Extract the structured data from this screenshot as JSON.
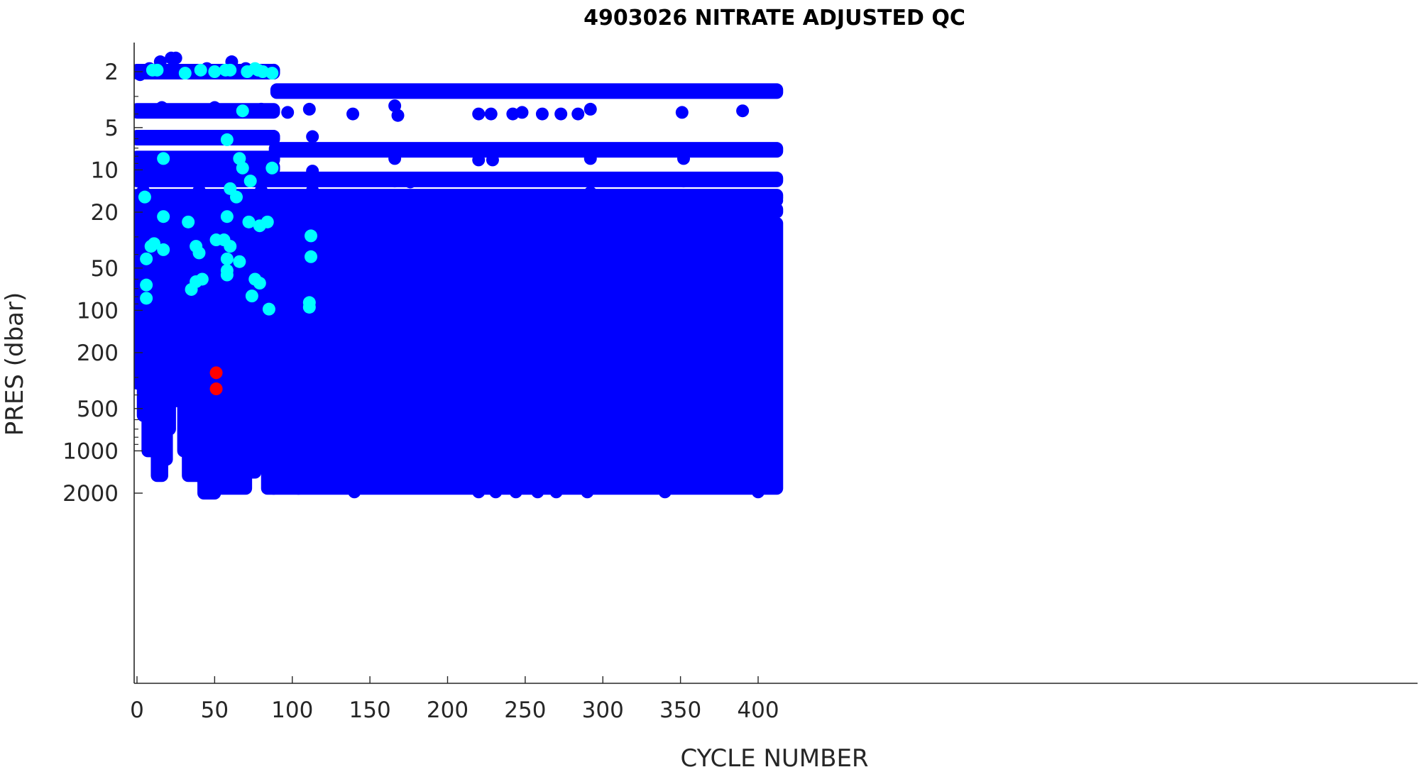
{
  "chart_data": {
    "type": "scatter",
    "title": "4903026  NITRATE ADJUSTED QC",
    "xlabel": "CYCLE NUMBER",
    "ylabel": "PRES (dbar)",
    "xlim": [
      0,
      412
    ],
    "ylim": [
      1.5,
      2100
    ],
    "y_scale": "log",
    "y_direction": "reversed",
    "grid": false,
    "xticks": [
      0,
      50,
      100,
      150,
      200,
      250,
      300,
      350,
      400
    ],
    "yticks": [
      2,
      5,
      10,
      20,
      50,
      100,
      200,
      500,
      1000,
      2000
    ],
    "colors": {
      "qc_good": "#0000ff",
      "qc_probably_good": "#00ffff",
      "qc_bad": "#ff0000"
    },
    "series": [
      {
        "color": "#0000ff",
        "description_points": "bulk profile points",
        "points": [
          [
            2,
            2.1
          ],
          [
            8,
            1.9
          ],
          [
            15,
            1.7
          ],
          [
            22,
            1.6
          ],
          [
            25,
            1.6
          ],
          [
            27,
            2.0
          ],
          [
            35,
            2.0
          ],
          [
            45,
            1.9
          ],
          [
            55,
            2.0
          ],
          [
            61,
            1.7
          ],
          [
            70,
            1.9
          ],
          [
            80,
            2.0
          ],
          [
            88,
            1.95
          ],
          [
            2,
            3.8
          ],
          [
            12,
            3.8
          ],
          [
            16,
            3.6
          ],
          [
            26,
            3.8
          ],
          [
            40,
            3.8
          ],
          [
            50,
            3.6
          ],
          [
            65,
            3.8
          ],
          [
            80,
            3.7
          ],
          [
            97,
            3.9
          ],
          [
            111,
            3.7
          ],
          [
            139,
            4.0
          ],
          [
            166,
            3.5
          ],
          [
            168,
            4.1
          ],
          [
            220,
            4.0
          ],
          [
            228,
            4.0
          ],
          [
            242,
            4.0
          ],
          [
            248,
            3.9
          ],
          [
            261,
            4.0
          ],
          [
            273,
            4.0
          ],
          [
            284,
            4.0
          ],
          [
            292,
            3.7
          ],
          [
            351,
            3.9
          ],
          [
            390,
            3.8
          ],
          [
            3,
            5.9
          ],
          [
            20,
            5.9
          ],
          [
            40,
            5.9
          ],
          [
            60,
            5.9
          ],
          [
            80,
            5.9
          ],
          [
            113,
            5.8
          ],
          [
            3,
            8.3
          ],
          [
            30,
            8.3
          ],
          [
            50,
            8.3
          ],
          [
            70,
            8.3
          ],
          [
            88,
            8.2
          ],
          [
            166,
            8.3
          ],
          [
            220,
            8.5
          ],
          [
            229,
            8.5
          ],
          [
            292,
            8.3
          ],
          [
            352,
            8.3
          ],
          [
            3,
            9.8
          ],
          [
            30,
            9.8
          ],
          [
            60,
            9.8
          ],
          [
            87,
            9.8
          ],
          [
            113,
            10.2
          ],
          [
            166,
            12.0
          ],
          [
            176,
            12.2
          ],
          [
            352,
            12.0
          ],
          [
            4,
            14
          ],
          [
            40,
            14
          ],
          [
            80,
            14
          ],
          [
            113,
            14
          ],
          [
            166,
            16.5
          ],
          [
            292,
            14.5
          ],
          [
            352,
            16
          ],
          [
            412,
            16.5
          ],
          [
            4,
            19
          ],
          [
            30,
            19
          ],
          [
            60,
            19
          ],
          [
            88,
            19
          ],
          [
            113,
            18
          ],
          [
            166,
            19
          ],
          [
            292,
            19
          ],
          [
            400,
            19
          ],
          [
            140,
            1960
          ],
          [
            220,
            1960
          ],
          [
            231,
            1960
          ],
          [
            244,
            1960
          ],
          [
            258,
            1960
          ],
          [
            270,
            1960
          ],
          [
            290,
            1960
          ],
          [
            340,
            1960
          ],
          [
            400,
            1960
          ]
        ],
        "bands": [
          {
            "x": [
              0,
              88
            ],
            "y": 2.0
          },
          {
            "x": [
              90,
              412
            ],
            "y": 2.75
          },
          {
            "x": [
              0,
              88
            ],
            "y": 3.8
          },
          {
            "x": [
              0,
              88
            ],
            "y": 5.9
          },
          {
            "x": [
              89,
              412
            ],
            "y": 7.2
          },
          {
            "x": [
              0,
              88
            ],
            "y": 8.3
          },
          {
            "x": [
              0,
              88
            ],
            "y": 9.7
          },
          {
            "x": [
              0,
              412
            ],
            "y": 11.7
          },
          {
            "x": [
              0,
              412
            ],
            "y": 15.5
          },
          {
            "x": [
              0,
              412
            ],
            "y": 19.5
          }
        ],
        "profiles": [
          {
            "x": [
              0,
              4
            ],
            "top": 24,
            "bottom": 330
          },
          {
            "x": [
              4,
              7
            ],
            "top": 24,
            "bottom": 560
          },
          {
            "x": [
              7,
              10
            ],
            "top": 24,
            "bottom": 1000
          },
          {
            "x": [
              10,
              13
            ],
            "top": 24,
            "bottom": 1000
          },
          {
            "x": [
              13,
              16
            ],
            "top": 24,
            "bottom": 1500
          },
          {
            "x": [
              16,
              19
            ],
            "top": 24,
            "bottom": 1150
          },
          {
            "x": [
              19,
              21
            ],
            "top": 24,
            "bottom": 700
          },
          {
            "x": [
              21,
              25
            ],
            "top": 24,
            "bottom": 440
          },
          {
            "x": [
              25,
              30
            ],
            "top": 24,
            "bottom": 440
          },
          {
            "x": [
              30,
              33
            ],
            "top": 18,
            "bottom": 1000
          },
          {
            "x": [
              33,
              39
            ],
            "top": 18,
            "bottom": 1500
          },
          {
            "x": [
              39,
              43
            ],
            "top": 18,
            "bottom": 1500
          },
          {
            "x": [
              43,
              50
            ],
            "top": 18,
            "bottom": 2000
          },
          {
            "x": [
              50,
              70
            ],
            "top": 18,
            "bottom": 1850
          },
          {
            "x": [
              70,
              76
            ],
            "top": 18,
            "bottom": 1420
          },
          {
            "x": [
              76,
              84
            ],
            "top": 18,
            "bottom": 1250
          },
          {
            "x": [
              84,
              88
            ],
            "top": 18,
            "bottom": 1850
          },
          {
            "x": [
              88,
              104
            ],
            "top": 24,
            "bottom": 1850
          },
          {
            "x": [
              104,
              412
            ],
            "top": 24,
            "bottom": 1850
          }
        ]
      },
      {
        "color": "#00ffff",
        "points": [
          [
            10,
            1.95
          ],
          [
            13,
            1.95
          ],
          [
            31,
            2.05
          ],
          [
            41,
            1.95
          ],
          [
            50,
            2.0
          ],
          [
            57,
            1.95
          ],
          [
            60,
            1.95
          ],
          [
            71,
            2.0
          ],
          [
            76,
            1.9
          ],
          [
            78,
            1.95
          ],
          [
            81,
            2.0
          ],
          [
            87,
            2.05
          ],
          [
            68,
            3.8
          ],
          [
            58,
            6.1
          ],
          [
            17,
            8.3
          ],
          [
            66,
            8.3
          ],
          [
            68,
            9.7
          ],
          [
            87,
            9.7
          ],
          [
            73,
            12.0
          ],
          [
            60,
            13.6
          ],
          [
            64,
            15.6
          ],
          [
            5,
            15.6
          ],
          [
            17,
            21.5
          ],
          [
            58,
            21.5
          ],
          [
            33,
            23.5
          ],
          [
            72,
            23.5
          ],
          [
            79,
            25
          ],
          [
            84,
            23.5
          ],
          [
            51,
            31.5
          ],
          [
            56,
            31.5
          ],
          [
            11,
            33.5
          ],
          [
            9,
            35
          ],
          [
            38,
            35
          ],
          [
            60,
            35
          ],
          [
            17,
            37
          ],
          [
            40,
            39
          ],
          [
            112,
            29.5
          ],
          [
            112,
            41.5
          ],
          [
            6,
            43
          ],
          [
            58,
            43
          ],
          [
            66,
            45
          ],
          [
            58,
            52
          ],
          [
            58,
            56
          ],
          [
            76,
            60
          ],
          [
            42,
            60
          ],
          [
            38,
            62.5
          ],
          [
            79,
            64
          ],
          [
            6,
            66
          ],
          [
            35,
            71
          ],
          [
            74,
            79
          ],
          [
            6,
            82
          ],
          [
            111,
            88
          ],
          [
            111,
            95
          ],
          [
            85,
            98
          ]
        ]
      },
      {
        "color": "#ff0000",
        "points": [
          [
            51,
            278
          ],
          [
            51,
            362
          ]
        ]
      }
    ]
  }
}
